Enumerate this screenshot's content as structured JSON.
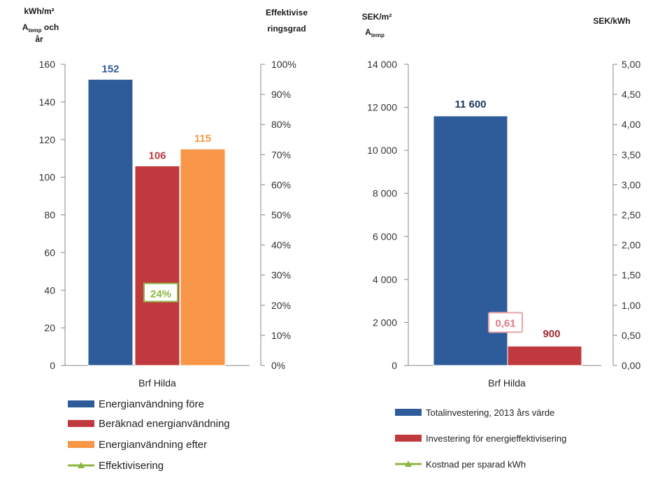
{
  "chart_data": [
    {
      "type": "bar",
      "left_axis_title": [
        "kWh/m²",
        "A",
        "temp",
        " och",
        "år"
      ],
      "right_axis_title": [
        "Effektivise",
        "ringsgrad"
      ],
      "categories": [
        "Brf Hilda"
      ],
      "ylim": [
        0,
        160
      ],
      "y_ticks": [
        "0",
        "20",
        "40",
        "60",
        "80",
        "100",
        "120",
        "140",
        "160"
      ],
      "y2lim": [
        0,
        100
      ],
      "y2_ticks": [
        "0%",
        "10%",
        "20%",
        "30%",
        "40%",
        "50%",
        "60%",
        "70%",
        "80%",
        "90%",
        "100%"
      ],
      "series": [
        {
          "name": "Energianvändning före",
          "values": [
            152
          ],
          "label": "152",
          "color": "#2E5C9A"
        },
        {
          "name": "Beräknad energianvändning",
          "values": [
            106
          ],
          "label": "106",
          "color": "#C0393E"
        },
        {
          "name": "Energianvändning efter",
          "values": [
            115
          ],
          "label": "115",
          "color": "#F79646"
        },
        {
          "name": "Effektivisering",
          "values": [
            24
          ],
          "axis": "secondary",
          "label": "24%",
          "color": "#8DB541"
        }
      ],
      "legend_position": "bottom"
    },
    {
      "type": "bar",
      "left_axis_title": [
        "SEK/m²",
        "A",
        "temp"
      ],
      "right_axis_title": [
        "SEK/kWh"
      ],
      "categories": [
        "Brf Hilda"
      ],
      "ylim": [
        0,
        14000
      ],
      "y_ticks": [
        "0",
        "2 000",
        "4 000",
        "6 000",
        "8 000",
        "10 000",
        "12 000",
        "14 000"
      ],
      "y2lim": [
        0,
        5
      ],
      "y2_ticks": [
        "0,00",
        "0,50",
        "1,00",
        "1,50",
        "2,00",
        "2,50",
        "3,00",
        "3,50",
        "4,00",
        "4,50",
        "5,00"
      ],
      "series": [
        {
          "name": "Totalinvestering, 2013 års värde",
          "values": [
            11600
          ],
          "label": "11 600",
          "color": "#2E5C9A"
        },
        {
          "name": "Investering för energieffektivisering",
          "values": [
            900
          ],
          "label": "900",
          "color": "#C0393E"
        },
        {
          "name": "Kostnad per sparad kWh",
          "values": [
            0.61
          ],
          "axis": "secondary",
          "label": "0,61",
          "color": "#8DB541"
        }
      ],
      "legend_position": "bottom"
    }
  ]
}
